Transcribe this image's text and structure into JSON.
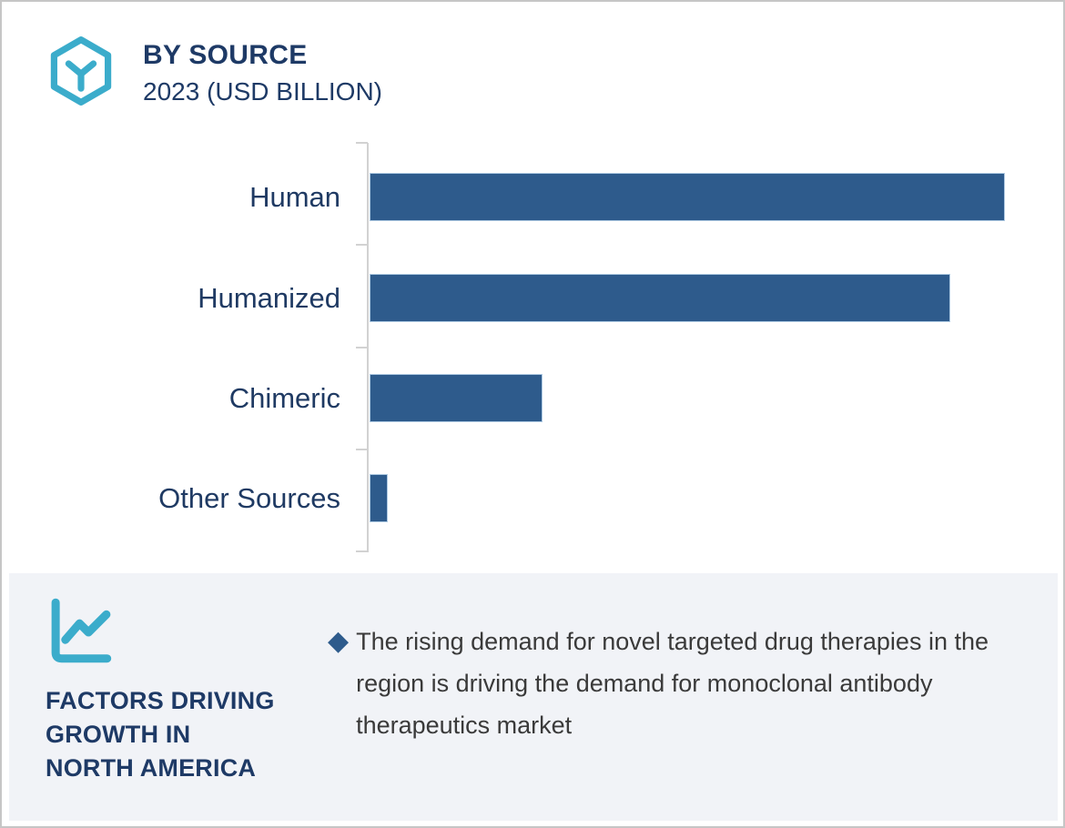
{
  "header": {
    "title": "BY SOURCE",
    "subtitle": "2023 (USD BILLION)",
    "icon": "hexagon-molecule-icon",
    "title_color": "#1e3a66",
    "accent_color": "#3bacCB"
  },
  "chart_data": {
    "type": "bar",
    "orientation": "horizontal",
    "title": "BY SOURCE",
    "subtitle": "2023 (USD BILLION)",
    "categories": [
      "Human",
      "Humanized",
      "Chimeric",
      "Other Sources"
    ],
    "values": [
      70,
      64,
      19,
      2
    ],
    "values_note": "estimated from bar lengths; chart shows no numeric axis or data labels",
    "xlabel": "",
    "ylabel": "",
    "xlim": [
      0,
      76
    ],
    "grid": false,
    "legend": false,
    "bar_color": "#2e5b8c",
    "axis_color": "#d2d2d2",
    "category_label_color": "#1f3a63"
  },
  "factors_panel": {
    "background": "#f1f3f7",
    "icon": "line-chart-icon",
    "heading_lines": [
      "FACTORS DRIVING",
      "GROWTH IN",
      "NORTH AMERICA"
    ],
    "heading_color": "#1e3a66",
    "bullet": {
      "marker": "◆",
      "marker_color": "#2e5b8c",
      "text": "The rising demand for novel targeted drug therapies in the region is driving the demand for monoclonal antibody therapeutics market"
    }
  }
}
